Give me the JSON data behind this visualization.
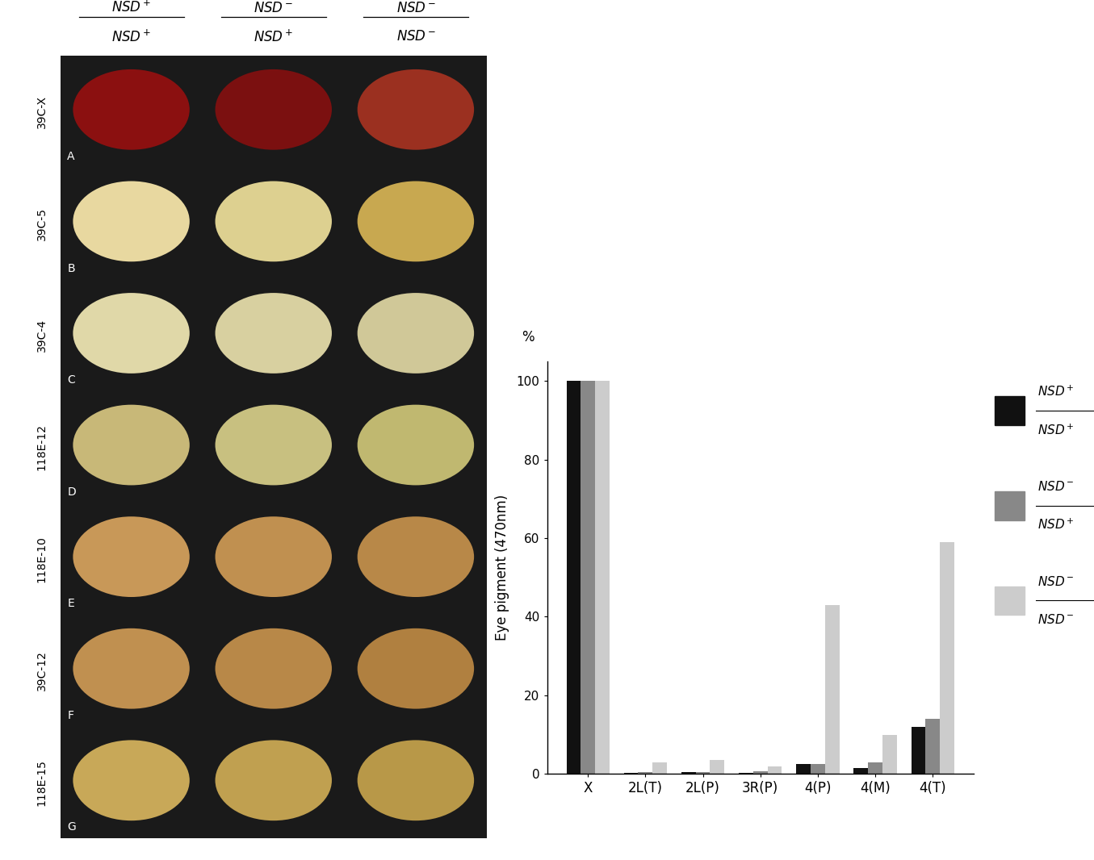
{
  "categories": [
    "X",
    "2L(T)",
    "2L(P)",
    "3R(P)",
    "4(P)",
    "4(M)",
    "4(T)"
  ],
  "black_vals": [
    100,
    0.3,
    0.4,
    0.3,
    2.5,
    1.5,
    12
  ],
  "gray_vals": [
    100,
    0.4,
    0.5,
    0.8,
    2.5,
    3.0,
    14
  ],
  "light_vals": [
    100,
    3.0,
    3.5,
    2.0,
    43,
    10,
    59
  ],
  "color_black": "#111111",
  "color_gray": "#888888",
  "color_light": "#cccccc",
  "ylabel": "Eye pigment (470nm)",
  "percent_label": "%",
  "ylim": [
    0,
    105
  ],
  "yticks": [
    0,
    20,
    40,
    60,
    80,
    100
  ],
  "bar_width": 0.25,
  "figure_width": 13.55,
  "figure_height": 10.66,
  "row_labels": [
    "39C-X",
    "39C-5",
    "39C-4",
    "118E-12",
    "118E-10",
    "39C-12",
    "118E-15"
  ],
  "panel_letters": [
    "A",
    "B",
    "C",
    "D",
    "E",
    "F",
    "G"
  ],
  "col_headers_top": [
    "NSD$^+$",
    "NSD$^-$",
    "NSD$^-$"
  ],
  "col_headers_bot": [
    "NSD$^+$",
    "NSD$^+$",
    "NSD$^-$"
  ],
  "legend_top_texts": [
    "NSD$^+$",
    "NSD$^-$",
    "NSD$^-$"
  ],
  "legend_bot_texts": [
    "NSD$^+$",
    "NSD$^+$",
    "NSD$^-$"
  ],
  "eye_colors": [
    [
      "#8B1010",
      "#7B1010",
      "#9B3020"
    ],
    [
      "#E8D8A0",
      "#DDD090",
      "#C8A850"
    ],
    [
      "#E0D8A8",
      "#D8D0A0",
      "#D0C898"
    ],
    [
      "#C8B878",
      "#C8C080",
      "#C0B870"
    ],
    [
      "#C89858",
      "#C09050",
      "#B88848"
    ],
    [
      "#C09050",
      "#B88848",
      "#B08040"
    ],
    [
      "#C8A858",
      "#C0A050",
      "#B89848"
    ]
  ],
  "bg_colors": [
    [
      "#1a1a1a",
      "#1a1a1a",
      "#1a1a1a"
    ],
    [
      "#1a1a1a",
      "#1a1a1a",
      "#1a1a1a"
    ],
    [
      "#1a1a1a",
      "#1a1a1a",
      "#1a1a1a"
    ],
    [
      "#1a1a1a",
      "#1a1a1a",
      "#1a1a1a"
    ],
    [
      "#1a1a1a",
      "#1a1a1a",
      "#1a1a1a"
    ],
    [
      "#1a1a1a",
      "#1a1a1a",
      "#1a1a1a"
    ],
    [
      "#1a1a1a",
      "#1a1a1a",
      "#1a1a1a"
    ]
  ]
}
